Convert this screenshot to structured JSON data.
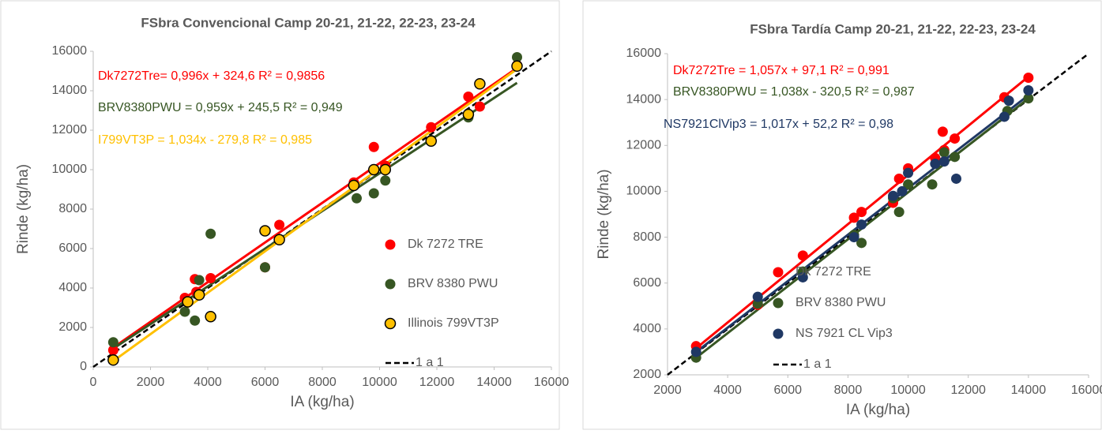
{
  "chart_data": [
    {
      "type": "scatter",
      "title": "FSbra Convencional Camp 20-21, 21-22, 22-23, 23-24",
      "x_label": "IA (kg/ha)",
      "y_label": "Rinde (kg/ha)",
      "xlim": [
        0,
        16000
      ],
      "xticks": [
        0,
        2000,
        4000,
        6000,
        8000,
        10000,
        12000,
        14000,
        16000
      ],
      "ylim": [
        0,
        16000
      ],
      "yticks": [
        0,
        2000,
        4000,
        6000,
        8000,
        10000,
        12000,
        14000,
        16000
      ],
      "legend": "lower right",
      "trendline": true,
      "annotations": [
        {
          "text": "Dk7272Tre= 0,996x + 324,6 R² = 0,9856",
          "color": "#ff0000"
        },
        {
          "text": "BRV8380PWU = 0,959x + 245,5 R² = 0,949",
          "color": "#375623"
        },
        {
          "text": "I799VT3P = 1,034x - 279,8 R² = 0,985",
          "color": "#ffc000"
        }
      ],
      "series": [
        {
          "name": "Dk 7272 TRE",
          "color": "#ff0000",
          "edge": false,
          "x": [
            700,
            3200,
            3550,
            3600,
            4100,
            6000,
            6500,
            9100,
            9800,
            10200,
            11800,
            13100,
            13500,
            14800
          ],
          "values": [
            850,
            3500,
            4450,
            3800,
            4500,
            5050,
            7200,
            9350,
            11150,
            10200,
            12150,
            13700,
            13200,
            15300
          ]
        },
        {
          "name": "BRV 8380 PWU",
          "color": "#375623",
          "edge": false,
          "x": [
            700,
            3200,
            3550,
            3700,
            4100,
            6000,
            9200,
            9800,
            10200,
            11800,
            13100,
            14800
          ],
          "values": [
            1250,
            2800,
            2350,
            4400,
            6750,
            5050,
            8550,
            8800,
            9450,
            11500,
            12650,
            15700
          ]
        },
        {
          "name": "Illinois 799VT3P",
          "color": "#ffc000",
          "edge": true,
          "x": [
            700,
            3300,
            3700,
            4100,
            6000,
            6500,
            9100,
            9800,
            10200,
            11800,
            13100,
            13500,
            14800
          ],
          "values": [
            350,
            3300,
            3650,
            2550,
            6900,
            6450,
            9200,
            10000,
            10000,
            11450,
            12800,
            14350,
            15250
          ]
        }
      ],
      "reference_line": {
        "name": "1 a 1",
        "color": "#000000"
      }
    },
    {
      "type": "scatter",
      "title": "FSbra Tardía Camp 20-21, 21-22, 22-23, 23-24",
      "x_label": "IA (kg/ha)",
      "y_label": "Rinde (kg/ha)",
      "xlim": [
        2000,
        16000
      ],
      "xticks": [
        2000,
        4000,
        6000,
        8000,
        10000,
        12000,
        14000,
        16000
      ],
      "ylim": [
        2000,
        16000
      ],
      "yticks": [
        2000,
        4000,
        6000,
        8000,
        10000,
        12000,
        14000,
        16000
      ],
      "legend": "lower right",
      "trendline": true,
      "annotations": [
        {
          "text": "Dk7272Tre = 1,057x + 97,1 R² = 0,991",
          "color": "#ff0000"
        },
        {
          "text": "BRV8380PWU = 1,038x - 320,5 R² = 0,987",
          "color": "#375623"
        },
        {
          "text": "NS7921ClVip3 = 1,017x + 52,2 R² = 0,98",
          "color": "#1f3864"
        }
      ],
      "series": [
        {
          "name": "Dk 7272 TRE",
          "color": "#ff0000",
          "edge": false,
          "x": [
            2950,
            5000,
            6500,
            8200,
            8450,
            9500,
            9700,
            10000,
            10900,
            11150,
            11200,
            11550,
            13200,
            14000
          ],
          "values": [
            3250,
            5050,
            7200,
            8850,
            9100,
            9500,
            10550,
            11000,
            11450,
            12600,
            11800,
            12300,
            14100,
            14950
          ]
        },
        {
          "name": "BRV 8380 PWU",
          "color": "#375623",
          "edge": false,
          "x": [
            2950,
            5000,
            6500,
            8200,
            8450,
            9500,
            9700,
            10000,
            10800,
            11200,
            11550,
            13300,
            14000
          ],
          "values": [
            2750,
            5100,
            6500,
            8100,
            7750,
            9700,
            9100,
            10300,
            10300,
            11700,
            11500,
            13500,
            14050
          ]
        },
        {
          "name": "NS 7921 CL Vip3",
          "color": "#1f3864",
          "edge": false,
          "x": [
            2950,
            5000,
            6500,
            8200,
            8450,
            9500,
            9800,
            10000,
            10900,
            11200,
            11600,
            13200,
            13350,
            14000
          ],
          "values": [
            3000,
            5400,
            6250,
            8000,
            8550,
            9800,
            10000,
            10800,
            11200,
            11300,
            10550,
            13250,
            13950,
            14400
          ]
        }
      ],
      "reference_line": {
        "name": "1 a 1",
        "color": "#000000"
      }
    }
  ]
}
